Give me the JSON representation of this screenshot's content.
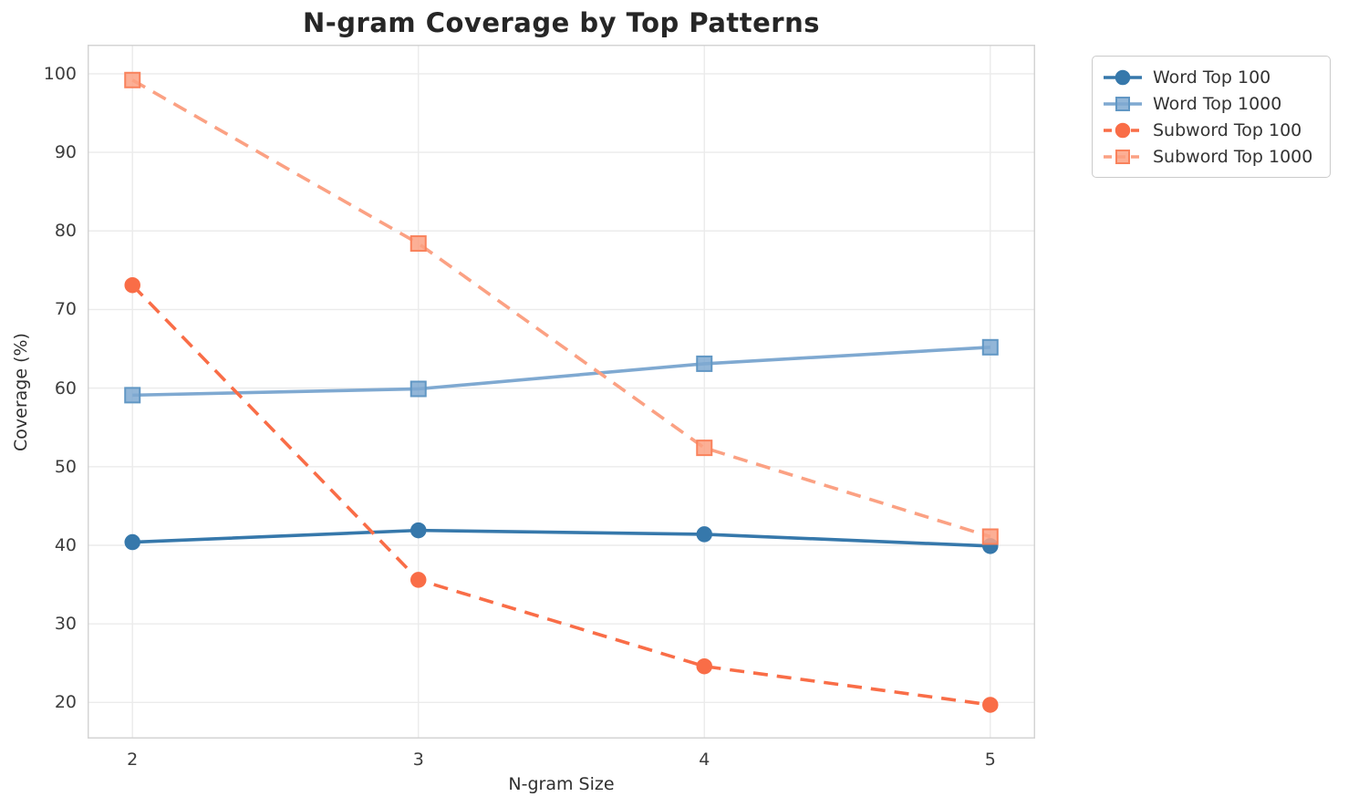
{
  "chart_data": {
    "type": "line",
    "title": "N-gram Coverage by Top Patterns",
    "xlabel": "N-gram Size",
    "ylabel": "Coverage (%)",
    "x": [
      2,
      3,
      4,
      5
    ],
    "xticks": [
      2,
      3,
      4,
      5
    ],
    "yticks": [
      20,
      30,
      40,
      50,
      60,
      70,
      80,
      90,
      100
    ],
    "xlim": [
      1.843,
      5.157
    ],
    "ylim": [
      15.4,
      103.7
    ],
    "grid": true,
    "legend_position": "outside-top-right",
    "series": [
      {
        "name": "Word Top 100",
        "values": [
          40.4,
          41.9,
          41.4,
          39.9
        ],
        "color": "#3678ab",
        "edge_color": "#3678ab",
        "marker": "circle",
        "line_style": "solid"
      },
      {
        "name": "Word Top 1000",
        "values": [
          59.1,
          59.9,
          63.1,
          65.2
        ],
        "color": "#7fa9d1",
        "edge_color": "#6197c4",
        "marker": "square",
        "line_style": "solid"
      },
      {
        "name": "Subword Top 100",
        "values": [
          73.1,
          35.6,
          24.6,
          19.7
        ],
        "color": "#f96d47",
        "edge_color": "#f96d47",
        "marker": "circle",
        "line_style": "dashed"
      },
      {
        "name": "Subword Top 1000",
        "values": [
          99.2,
          78.4,
          52.4,
          41.1
        ],
        "color": "#fba183",
        "edge_color": "#f9825c",
        "marker": "square",
        "line_style": "dashed"
      }
    ],
    "style": {
      "grid_color": "#ebebeb",
      "spine_color": "#d4d4d4",
      "background": "#ffffff"
    }
  }
}
